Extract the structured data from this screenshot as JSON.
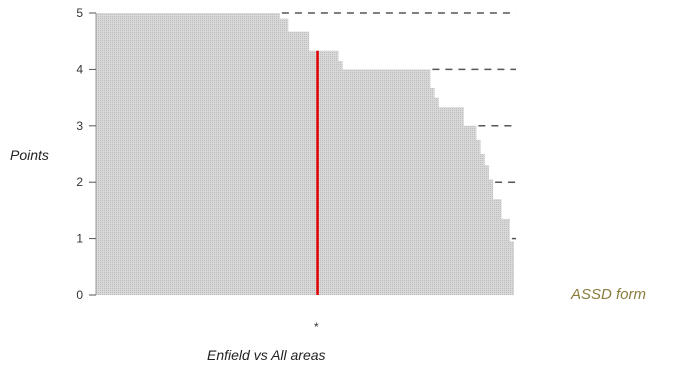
{
  "chart_data": {
    "type": "area",
    "xlabel": "Enfield vs All areas",
    "ylabel": "Points",
    "ylim": [
      0,
      5
    ],
    "yticks": [
      "0",
      "1",
      "2",
      "3",
      "4",
      "5"
    ],
    "x_marker": "*",
    "fill_color": "#cfcfcf",
    "highlight_color": "#e00000",
    "reference_color": "#555555",
    "series": [
      {
        "name": "ASSD form",
        "steps": [
          {
            "x": 0.0,
            "y": 5.0
          },
          {
            "x": 0.44,
            "y": 4.9
          },
          {
            "x": 0.46,
            "y": 4.67
          },
          {
            "x": 0.51,
            "y": 4.33
          },
          {
            "x": 0.58,
            "y": 4.15
          },
          {
            "x": 0.59,
            "y": 4.0
          },
          {
            "x": 0.8,
            "y": 3.67
          },
          {
            "x": 0.81,
            "y": 3.5
          },
          {
            "x": 0.82,
            "y": 3.33
          },
          {
            "x": 0.88,
            "y": 3.0
          },
          {
            "x": 0.91,
            "y": 2.75
          },
          {
            "x": 0.92,
            "y": 2.5
          },
          {
            "x": 0.93,
            "y": 2.3
          },
          {
            "x": 0.94,
            "y": 2.05
          },
          {
            "x": 0.95,
            "y": 1.7
          },
          {
            "x": 0.97,
            "y": 1.35
          },
          {
            "x": 0.99,
            "y": 0.95
          }
        ],
        "x_end": 1.0
      }
    ],
    "reference_levels": [
      5,
      4,
      3,
      2,
      1
    ],
    "highlight": {
      "x": 0.53,
      "y": 4.33
    }
  }
}
